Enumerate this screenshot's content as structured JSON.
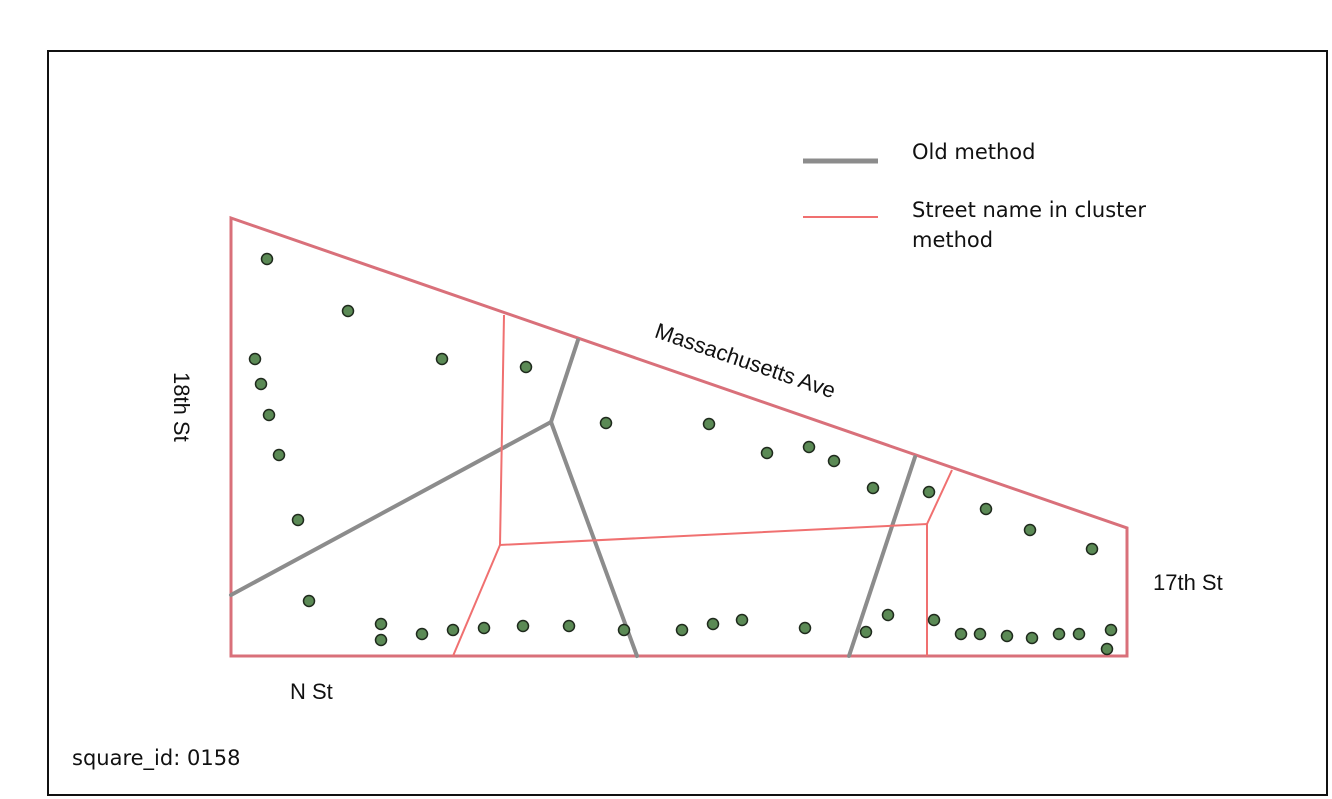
{
  "legend": {
    "old_method": {
      "label": "Old method",
      "color": "#8c8c8c"
    },
    "cluster_method": {
      "label": "Street name in cluster method",
      "line1": "Street name in cluster",
      "line2": "method",
      "color": "#f07070"
    }
  },
  "streets": {
    "north": "Massachusetts Ave",
    "west": "18th St",
    "east": "17th St",
    "south": "N St"
  },
  "square": {
    "label": "square_id",
    "value": "0158"
  },
  "colors": {
    "block_outline": "#e06b6b",
    "old_method_line": "#8c8c8c",
    "cluster_line": "#f07070",
    "point_fill": "#5b8a55",
    "point_stroke": "#1f2a1d"
  }
}
